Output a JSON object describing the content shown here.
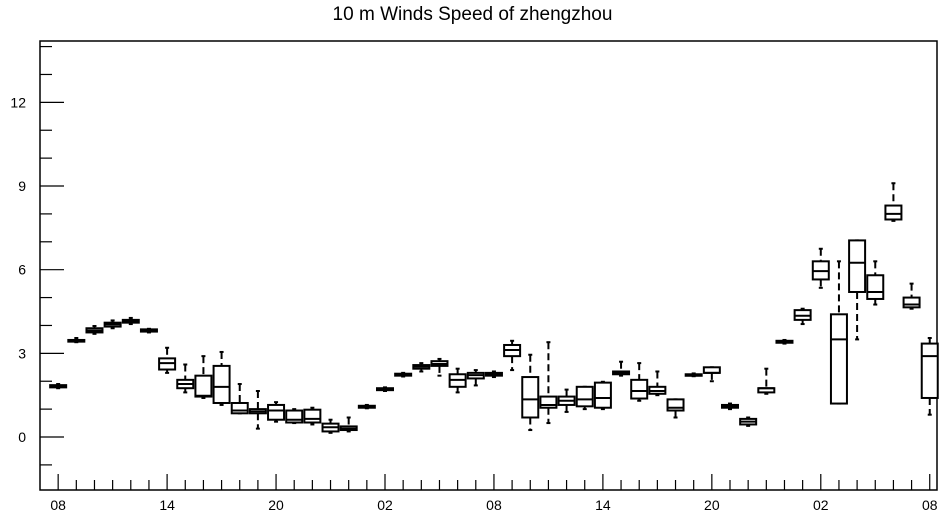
{
  "chart_data": {
    "type": "box",
    "title": "10 m Winds Speed of zhengzhou",
    "xlabel": "",
    "ylabel": "",
    "ylim": [
      -1.9,
      14.2
    ],
    "yticks": [
      0,
      3,
      6,
      9,
      12
    ],
    "x_tick_labels": [
      "08",
      "14",
      "20",
      "02",
      "08",
      "14",
      "20",
      "02",
      "08"
    ],
    "x_tick_positions": [
      0,
      6,
      12,
      18,
      24,
      30,
      36,
      42,
      48
    ],
    "xlim": [
      -1,
      48.4
    ],
    "grid": false,
    "boxes": [
      {
        "x": 0,
        "whislo": 1.75,
        "q1": 1.78,
        "med": 1.82,
        "q3": 1.86,
        "whishi": 1.9
      },
      {
        "x": 1,
        "whislo": 3.4,
        "q1": 3.42,
        "med": 3.45,
        "q3": 3.48,
        "whishi": 3.55
      },
      {
        "x": 2,
        "whislo": 3.7,
        "q1": 3.75,
        "med": 3.82,
        "q3": 3.9,
        "whishi": 3.98
      },
      {
        "x": 3,
        "whislo": 3.9,
        "q1": 3.96,
        "med": 4.04,
        "q3": 4.1,
        "whishi": 4.18
      },
      {
        "x": 4,
        "whislo": 4.05,
        "q1": 4.1,
        "med": 4.15,
        "q3": 4.2,
        "whishi": 4.27
      },
      {
        "x": 5,
        "whislo": 3.75,
        "q1": 3.78,
        "med": 3.82,
        "q3": 3.86,
        "whishi": 3.88
      },
      {
        "x": 6,
        "whislo": 2.3,
        "q1": 2.42,
        "med": 2.65,
        "q3": 2.82,
        "whishi": 3.2
      },
      {
        "x": 7,
        "whislo": 1.6,
        "q1": 1.75,
        "med": 1.9,
        "q3": 2.05,
        "whishi": 2.6
      },
      {
        "x": 8,
        "whislo": 1.4,
        "q1": 1.45,
        "med": 1.48,
        "q3": 2.2,
        "whishi": 2.9
      },
      {
        "x": 9,
        "whislo": 1.15,
        "q1": 1.22,
        "med": 1.8,
        "q3": 2.55,
        "whishi": 3.05
      },
      {
        "x": 10,
        "whislo": 0.85,
        "q1": 0.85,
        "med": 0.95,
        "q3": 1.22,
        "whishi": 1.9
      },
      {
        "x": 11,
        "whislo": 0.3,
        "q1": 0.85,
        "med": 0.92,
        "q3": 1.0,
        "whishi": 1.65
      },
      {
        "x": 12,
        "whislo": 0.55,
        "q1": 0.62,
        "med": 0.95,
        "q3": 1.15,
        "whishi": 1.25
      },
      {
        "x": 13,
        "whislo": 0.5,
        "q1": 0.52,
        "med": 0.62,
        "q3": 0.95,
        "whishi": 1.0
      },
      {
        "x": 14,
        "whislo": 0.45,
        "q1": 0.52,
        "med": 0.65,
        "q3": 0.98,
        "whishi": 1.05
      },
      {
        "x": 15,
        "whislo": 0.15,
        "q1": 0.2,
        "med": 0.35,
        "q3": 0.48,
        "whishi": 0.62
      },
      {
        "x": 16,
        "whislo": 0.2,
        "q1": 0.25,
        "med": 0.3,
        "q3": 0.38,
        "whishi": 0.7
      },
      {
        "x": 17,
        "whislo": 1.03,
        "q1": 1.05,
        "med": 1.08,
        "q3": 1.12,
        "whishi": 1.15
      },
      {
        "x": 18,
        "whislo": 1.65,
        "q1": 1.68,
        "med": 1.72,
        "q3": 1.75,
        "whishi": 1.78
      },
      {
        "x": 19,
        "whislo": 2.17,
        "q1": 2.2,
        "med": 2.23,
        "q3": 2.27,
        "whishi": 2.3
      },
      {
        "x": 20,
        "whislo": 2.35,
        "q1": 2.45,
        "med": 2.52,
        "q3": 2.58,
        "whishi": 2.65
      },
      {
        "x": 21,
        "whislo": 2.2,
        "q1": 2.55,
        "med": 2.62,
        "q3": 2.72,
        "whishi": 2.8
      },
      {
        "x": 22,
        "whislo": 1.6,
        "q1": 1.8,
        "med": 2.05,
        "q3": 2.25,
        "whishi": 2.45
      },
      {
        "x": 23,
        "whislo": 1.85,
        "q1": 2.1,
        "med": 2.22,
        "q3": 2.3,
        "whishi": 2.4
      },
      {
        "x": 24,
        "whislo": 2.15,
        "q1": 2.2,
        "med": 2.25,
        "q3": 2.3,
        "whishi": 2.35
      },
      {
        "x": 25,
        "whislo": 2.4,
        "q1": 2.9,
        "med": 3.12,
        "q3": 3.3,
        "whishi": 3.45
      },
      {
        "x": 26,
        "whislo": 0.25,
        "q1": 0.7,
        "med": 1.35,
        "q3": 2.15,
        "whishi": 2.95
      },
      {
        "x": 27,
        "whislo": 0.5,
        "q1": 1.05,
        "med": 1.15,
        "q3": 1.45,
        "whishi": 3.4
      },
      {
        "x": 28,
        "whislo": 0.9,
        "q1": 1.15,
        "med": 1.3,
        "q3": 1.45,
        "whishi": 1.7
      },
      {
        "x": 29,
        "whislo": 1.0,
        "q1": 1.1,
        "med": 1.35,
        "q3": 1.8,
        "whishi": 1.8
      },
      {
        "x": 30,
        "whislo": 1.0,
        "q1": 1.05,
        "med": 1.4,
        "q3": 1.95,
        "whishi": 1.98
      },
      {
        "x": 31,
        "whislo": 2.2,
        "q1": 2.25,
        "med": 2.3,
        "q3": 2.35,
        "whishi": 2.7
      },
      {
        "x": 32,
        "whislo": 1.3,
        "q1": 1.38,
        "med": 1.65,
        "q3": 2.05,
        "whishi": 2.65
      },
      {
        "x": 33,
        "whislo": 1.5,
        "q1": 1.55,
        "med": 1.65,
        "q3": 1.8,
        "whishi": 2.35
      },
      {
        "x": 34,
        "whislo": 0.7,
        "q1": 0.95,
        "med": 1.05,
        "q3": 1.35,
        "whishi": 1.35
      },
      {
        "x": 35,
        "whislo": 2.18,
        "q1": 2.2,
        "med": 2.22,
        "q3": 2.25,
        "whishi": 2.28
      },
      {
        "x": 36,
        "whislo": 2.0,
        "q1": 2.3,
        "med": 2.3,
        "q3": 2.5,
        "whishi": 2.5
      },
      {
        "x": 37,
        "whislo": 1.0,
        "q1": 1.05,
        "med": 1.1,
        "q3": 1.15,
        "whishi": 1.2
      },
      {
        "x": 38,
        "whislo": 0.4,
        "q1": 0.45,
        "med": 0.55,
        "q3": 0.65,
        "whishi": 0.7
      },
      {
        "x": 39,
        "whislo": 1.55,
        "q1": 1.6,
        "med": 1.75,
        "q3": 1.75,
        "whishi": 2.45
      },
      {
        "x": 40,
        "whislo": 3.35,
        "q1": 3.38,
        "med": 3.42,
        "q3": 3.45,
        "whishi": 3.48
      },
      {
        "x": 41,
        "whislo": 4.05,
        "q1": 4.2,
        "med": 4.35,
        "q3": 4.55,
        "whishi": 4.6
      },
      {
        "x": 42,
        "whislo": 5.35,
        "q1": 5.65,
        "med": 5.95,
        "q3": 6.3,
        "whishi": 6.75
      },
      {
        "x": 43,
        "whislo": 1.2,
        "q1": 1.2,
        "med": 3.5,
        "q3": 4.4,
        "whishi": 6.3
      },
      {
        "x": 44,
        "whislo": 3.5,
        "q1": 5.2,
        "med": 6.25,
        "q3": 7.05,
        "whishi": 7.05
      },
      {
        "x": 45,
        "whislo": 4.75,
        "q1": 4.95,
        "med": 5.2,
        "q3": 5.8,
        "whishi": 6.3
      },
      {
        "x": 46,
        "whislo": 7.75,
        "q1": 7.8,
        "med": 8.0,
        "q3": 8.3,
        "whishi": 9.1
      },
      {
        "x": 47,
        "whislo": 4.6,
        "q1": 4.65,
        "med": 4.75,
        "q3": 5.0,
        "whishi": 5.5
      },
      {
        "x": 48,
        "whislo": 0.8,
        "q1": 1.4,
        "med": 2.9,
        "q3": 3.35,
        "whishi": 3.55
      }
    ]
  }
}
